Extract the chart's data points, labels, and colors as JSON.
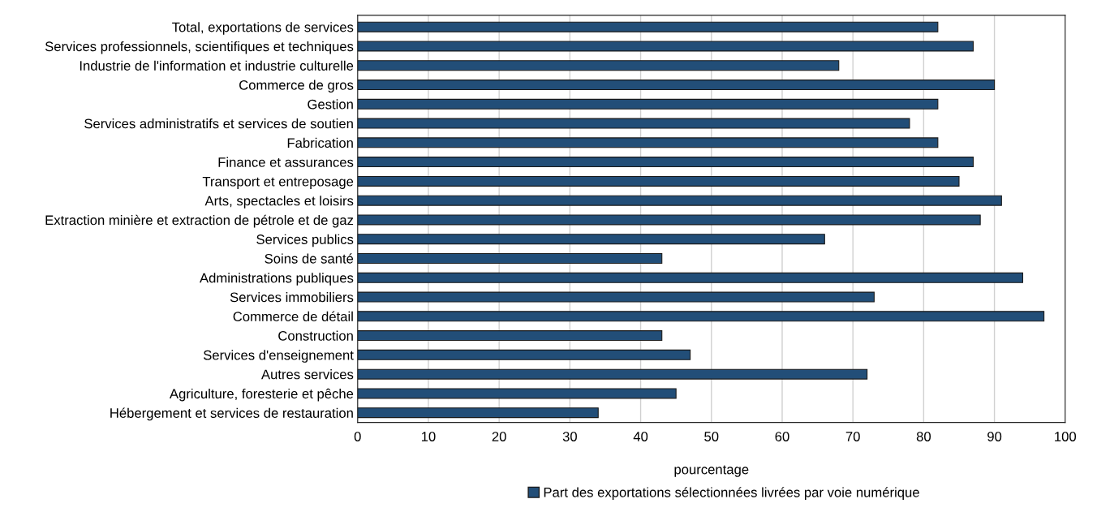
{
  "chart_data": {
    "type": "bar",
    "orientation": "horizontal",
    "xlabel": "pourcentage",
    "categories": [
      "Total, exportations de services",
      "Services professionnels, scientifiques et techniques",
      "Industrie de l'information et industrie culturelle",
      "Commerce de gros",
      "Gestion",
      "Services administratifs et services de soutien",
      "Fabrication",
      "Finance et assurances",
      "Transport et entreposage",
      "Arts, spectacles et loisirs",
      "Extraction minière et extraction de pétrole et de gaz",
      "Services publics",
      "Soins de santé",
      "Administrations publiques",
      "Services immobiliers",
      "Commerce de détail",
      "Construction",
      "Services d'enseignement",
      "Autres services",
      "Agriculture, foresterie et pêche",
      "Hébergement et services de restauration"
    ],
    "series": [
      {
        "name": "Part des exportations sélectionnées livrées par voie numérique",
        "color": "#224e78",
        "values": [
          82,
          87,
          68,
          90,
          82,
          78,
          82,
          87,
          85,
          91,
          88,
          66,
          43,
          94,
          73,
          97,
          43,
          47,
          72,
          45,
          34
        ]
      }
    ],
    "xlim": [
      0,
      100
    ],
    "xticks": [
      0,
      10,
      20,
      30,
      40,
      50,
      60,
      70,
      80,
      90,
      100
    ],
    "grid": "x",
    "legend": "bottom"
  }
}
